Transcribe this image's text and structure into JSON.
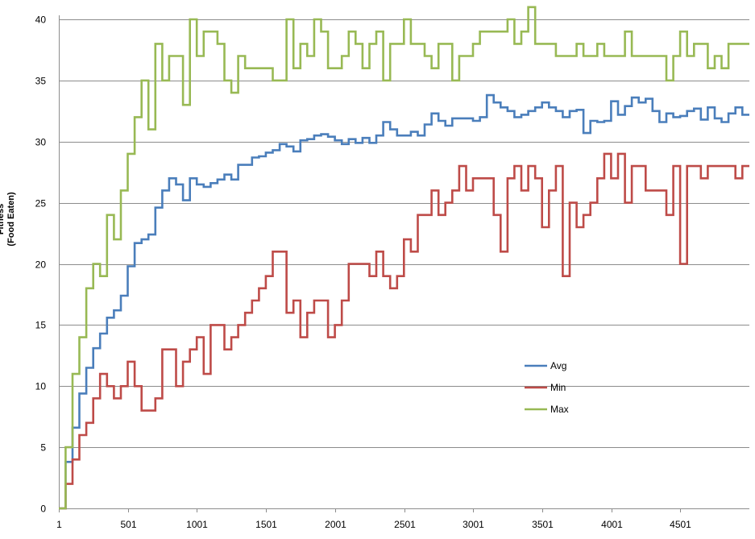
{
  "chart_data": {
    "type": "line",
    "step": true,
    "ylabel": [
      "Fitness",
      "(Food Eaten)"
    ],
    "xlabel": "",
    "xlim": [
      1,
      5001
    ],
    "ylim": [
      0,
      40
    ],
    "xticks": [
      1,
      501,
      1001,
      1501,
      2001,
      2501,
      3001,
      3501,
      4001,
      4501
    ],
    "yticks": [
      0,
      5,
      10,
      15,
      20,
      25,
      30,
      35,
      40
    ],
    "grid": "horizontal",
    "legend_position": "middle-right",
    "series": [
      {
        "name": "Avg",
        "color": "#4a7ebb",
        "points": [
          [
            1,
            0
          ],
          [
            50,
            3.8
          ],
          [
            100,
            6.6
          ],
          [
            150,
            9.4
          ],
          [
            200,
            11.5
          ],
          [
            250,
            13.1
          ],
          [
            300,
            14.3
          ],
          [
            350,
            15.6
          ],
          [
            400,
            16.2
          ],
          [
            450,
            17.4
          ],
          [
            500,
            19.8
          ],
          [
            550,
            21.7
          ],
          [
            600,
            22.0
          ],
          [
            650,
            22.4
          ],
          [
            700,
            24.6
          ],
          [
            750,
            26.0
          ],
          [
            800,
            27.0
          ],
          [
            850,
            26.5
          ],
          [
            900,
            25.2
          ],
          [
            950,
            27.0
          ],
          [
            1000,
            26.5
          ],
          [
            1050,
            26.3
          ],
          [
            1100,
            26.6
          ],
          [
            1150,
            26.9
          ],
          [
            1200,
            27.3
          ],
          [
            1250,
            26.9
          ],
          [
            1300,
            28.1
          ],
          [
            1350,
            28.1
          ],
          [
            1400,
            28.7
          ],
          [
            1450,
            28.8
          ],
          [
            1500,
            29.1
          ],
          [
            1550,
            29.3
          ],
          [
            1600,
            29.8
          ],
          [
            1650,
            29.6
          ],
          [
            1700,
            29.2
          ],
          [
            1750,
            30.1
          ],
          [
            1800,
            30.2
          ],
          [
            1850,
            30.5
          ],
          [
            1900,
            30.6
          ],
          [
            1950,
            30.4
          ],
          [
            2000,
            30.1
          ],
          [
            2050,
            29.8
          ],
          [
            2100,
            30.2
          ],
          [
            2150,
            29.9
          ],
          [
            2200,
            30.3
          ],
          [
            2250,
            29.9
          ],
          [
            2300,
            30.5
          ],
          [
            2350,
            31.6
          ],
          [
            2400,
            31.0
          ],
          [
            2450,
            30.5
          ],
          [
            2500,
            30.5
          ],
          [
            2550,
            30.8
          ],
          [
            2600,
            30.5
          ],
          [
            2650,
            31.4
          ],
          [
            2700,
            32.3
          ],
          [
            2750,
            31.7
          ],
          [
            2800,
            31.3
          ],
          [
            2850,
            31.9
          ],
          [
            2900,
            31.9
          ],
          [
            2950,
            31.9
          ],
          [
            3000,
            31.7
          ],
          [
            3050,
            32.0
          ],
          [
            3100,
            33.8
          ],
          [
            3150,
            33.2
          ],
          [
            3200,
            32.8
          ],
          [
            3250,
            32.5
          ],
          [
            3300,
            32.0
          ],
          [
            3350,
            32.2
          ],
          [
            3400,
            32.5
          ],
          [
            3450,
            32.8
          ],
          [
            3500,
            33.2
          ],
          [
            3550,
            32.8
          ],
          [
            3600,
            32.5
          ],
          [
            3650,
            32.0
          ],
          [
            3700,
            32.5
          ],
          [
            3750,
            32.6
          ],
          [
            3800,
            30.7
          ],
          [
            3850,
            31.7
          ],
          [
            3900,
            31.6
          ],
          [
            3950,
            31.7
          ],
          [
            4000,
            33.3
          ],
          [
            4050,
            32.2
          ],
          [
            4100,
            32.9
          ],
          [
            4150,
            33.6
          ],
          [
            4200,
            33.2
          ],
          [
            4250,
            33.5
          ],
          [
            4300,
            32.5
          ],
          [
            4350,
            31.6
          ],
          [
            4400,
            32.3
          ],
          [
            4450,
            32.0
          ],
          [
            4500,
            32.1
          ],
          [
            4550,
            32.5
          ],
          [
            4600,
            32.7
          ],
          [
            4650,
            31.8
          ],
          [
            4700,
            32.8
          ],
          [
            4750,
            31.9
          ],
          [
            4800,
            31.6
          ],
          [
            4850,
            32.3
          ],
          [
            4900,
            32.8
          ],
          [
            4950,
            32.2
          ],
          [
            5001,
            32.2
          ]
        ]
      },
      {
        "name": "Min",
        "color": "#be4b48",
        "points": [
          [
            1,
            0
          ],
          [
            50,
            2
          ],
          [
            100,
            4
          ],
          [
            150,
            6
          ],
          [
            200,
            7
          ],
          [
            250,
            9
          ],
          [
            300,
            11
          ],
          [
            350,
            10
          ],
          [
            400,
            9
          ],
          [
            450,
            10
          ],
          [
            500,
            12
          ],
          [
            550,
            10
          ],
          [
            600,
            8
          ],
          [
            650,
            8
          ],
          [
            700,
            9
          ],
          [
            750,
            13
          ],
          [
            800,
            13
          ],
          [
            850,
            10
          ],
          [
            900,
            12
          ],
          [
            950,
            13
          ],
          [
            1000,
            14
          ],
          [
            1050,
            11
          ],
          [
            1100,
            15
          ],
          [
            1150,
            15
          ],
          [
            1200,
            13
          ],
          [
            1250,
            14
          ],
          [
            1300,
            15
          ],
          [
            1350,
            16
          ],
          [
            1400,
            17
          ],
          [
            1450,
            18
          ],
          [
            1500,
            19
          ],
          [
            1550,
            21
          ],
          [
            1600,
            21
          ],
          [
            1650,
            16
          ],
          [
            1700,
            17
          ],
          [
            1750,
            14
          ],
          [
            1800,
            16
          ],
          [
            1850,
            17
          ],
          [
            1900,
            17
          ],
          [
            1950,
            14
          ],
          [
            2000,
            15
          ],
          [
            2050,
            17
          ],
          [
            2100,
            20
          ],
          [
            2150,
            20
          ],
          [
            2200,
            20
          ],
          [
            2250,
            19
          ],
          [
            2300,
            21
          ],
          [
            2350,
            19
          ],
          [
            2400,
            18
          ],
          [
            2450,
            19
          ],
          [
            2500,
            22
          ],
          [
            2550,
            21
          ],
          [
            2600,
            24
          ],
          [
            2650,
            24
          ],
          [
            2700,
            26
          ],
          [
            2750,
            24
          ],
          [
            2800,
            25
          ],
          [
            2850,
            26
          ],
          [
            2900,
            28
          ],
          [
            2950,
            26
          ],
          [
            3000,
            27
          ],
          [
            3050,
            27
          ],
          [
            3100,
            27
          ],
          [
            3150,
            24
          ],
          [
            3200,
            21
          ],
          [
            3250,
            27
          ],
          [
            3300,
            28
          ],
          [
            3350,
            26
          ],
          [
            3400,
            28
          ],
          [
            3450,
            27
          ],
          [
            3500,
            23
          ],
          [
            3550,
            26
          ],
          [
            3600,
            28
          ],
          [
            3650,
            19
          ],
          [
            3700,
            25
          ],
          [
            3750,
            23
          ],
          [
            3800,
            24
          ],
          [
            3850,
            25
          ],
          [
            3900,
            27
          ],
          [
            3950,
            29
          ],
          [
            4000,
            27
          ],
          [
            4050,
            29
          ],
          [
            4100,
            25
          ],
          [
            4150,
            28
          ],
          [
            4200,
            28
          ],
          [
            4250,
            26
          ],
          [
            4300,
            26
          ],
          [
            4350,
            26
          ],
          [
            4400,
            24
          ],
          [
            4450,
            28
          ],
          [
            4500,
            20
          ],
          [
            4550,
            28
          ],
          [
            4600,
            28
          ],
          [
            4650,
            27
          ],
          [
            4700,
            28
          ],
          [
            4750,
            28
          ],
          [
            4800,
            28
          ],
          [
            4850,
            28
          ],
          [
            4900,
            27
          ],
          [
            4950,
            28
          ],
          [
            5001,
            28
          ]
        ]
      },
      {
        "name": "Max",
        "color": "#98b954",
        "points": [
          [
            1,
            0
          ],
          [
            50,
            5
          ],
          [
            100,
            11
          ],
          [
            150,
            14
          ],
          [
            200,
            18
          ],
          [
            250,
            20
          ],
          [
            300,
            19
          ],
          [
            350,
            24
          ],
          [
            400,
            22
          ],
          [
            450,
            26
          ],
          [
            500,
            29
          ],
          [
            550,
            32
          ],
          [
            600,
            35
          ],
          [
            650,
            31
          ],
          [
            700,
            38
          ],
          [
            750,
            35
          ],
          [
            800,
            37
          ],
          [
            850,
            37
          ],
          [
            900,
            33
          ],
          [
            950,
            40
          ],
          [
            1000,
            37
          ],
          [
            1050,
            39
          ],
          [
            1100,
            39
          ],
          [
            1150,
            38
          ],
          [
            1200,
            35
          ],
          [
            1250,
            34
          ],
          [
            1300,
            37
          ],
          [
            1350,
            36
          ],
          [
            1400,
            36
          ],
          [
            1450,
            36
          ],
          [
            1500,
            36
          ],
          [
            1550,
            35
          ],
          [
            1600,
            35
          ],
          [
            1650,
            40
          ],
          [
            1700,
            36
          ],
          [
            1750,
            38
          ],
          [
            1800,
            37
          ],
          [
            1850,
            40
          ],
          [
            1900,
            39
          ],
          [
            1950,
            36
          ],
          [
            2000,
            36
          ],
          [
            2050,
            37
          ],
          [
            2100,
            39
          ],
          [
            2150,
            38
          ],
          [
            2200,
            36
          ],
          [
            2250,
            38
          ],
          [
            2300,
            39
          ],
          [
            2350,
            35
          ],
          [
            2400,
            38
          ],
          [
            2450,
            38
          ],
          [
            2500,
            40
          ],
          [
            2550,
            38
          ],
          [
            2600,
            38
          ],
          [
            2650,
            37
          ],
          [
            2700,
            36
          ],
          [
            2750,
            38
          ],
          [
            2800,
            38
          ],
          [
            2850,
            35
          ],
          [
            2900,
            37
          ],
          [
            2950,
            37
          ],
          [
            3000,
            38
          ],
          [
            3050,
            39
          ],
          [
            3100,
            39
          ],
          [
            3150,
            39
          ],
          [
            3200,
            39
          ],
          [
            3250,
            40
          ],
          [
            3300,
            38
          ],
          [
            3350,
            39
          ],
          [
            3400,
            41
          ],
          [
            3450,
            38
          ],
          [
            3500,
            38
          ],
          [
            3550,
            38
          ],
          [
            3600,
            37
          ],
          [
            3650,
            37
          ],
          [
            3700,
            37
          ],
          [
            3750,
            38
          ],
          [
            3800,
            37
          ],
          [
            3850,
            37
          ],
          [
            3900,
            38
          ],
          [
            3950,
            37
          ],
          [
            4000,
            37
          ],
          [
            4050,
            37
          ],
          [
            4100,
            39
          ],
          [
            4150,
            37
          ],
          [
            4200,
            37
          ],
          [
            4250,
            37
          ],
          [
            4300,
            37
          ],
          [
            4350,
            37
          ],
          [
            4400,
            35
          ],
          [
            4450,
            37
          ],
          [
            4500,
            39
          ],
          [
            4550,
            37
          ],
          [
            4600,
            38
          ],
          [
            4650,
            38
          ],
          [
            4700,
            36
          ],
          [
            4750,
            37
          ],
          [
            4800,
            36
          ],
          [
            4850,
            38
          ],
          [
            4900,
            38
          ],
          [
            4950,
            38
          ],
          [
            5001,
            38
          ]
        ]
      }
    ]
  }
}
